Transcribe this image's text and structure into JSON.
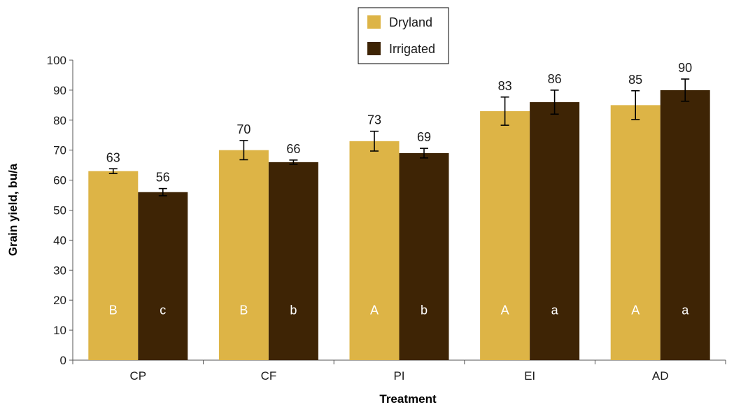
{
  "chart_data": {
    "type": "bar",
    "categories": [
      "CP",
      "CF",
      "PI",
      "EI",
      "AD"
    ],
    "series": [
      {
        "name": "Dryland",
        "color": "#DDB446",
        "values": [
          63,
          70,
          73,
          83,
          85
        ],
        "value_labels": [
          "63",
          "70",
          "73",
          "83",
          "85"
        ],
        "errors": [
          0.8,
          3.2,
          3.3,
          4.7,
          4.8
        ],
        "letters": [
          "B",
          "B",
          "A",
          "A",
          "A"
        ]
      },
      {
        "name": "Irrigated",
        "color": "#3E2405",
        "values": [
          56,
          66,
          69,
          86,
          90
        ],
        "value_labels": [
          "56",
          "66",
          "69",
          "86",
          "90"
        ],
        "errors": [
          1.2,
          0.7,
          1.6,
          4.0,
          3.7
        ],
        "letters": [
          "c",
          "b",
          "b",
          "a",
          "a"
        ]
      }
    ],
    "xlabel": "Treatment",
    "ylabel": "Grain yield, bu/a",
    "ylim": [
      0,
      100
    ],
    "yticks": [
      "0",
      "10",
      "20",
      "30",
      "40",
      "50",
      "60",
      "70",
      "80",
      "90",
      "100"
    ],
    "grid": false,
    "legend": "top-center"
  }
}
